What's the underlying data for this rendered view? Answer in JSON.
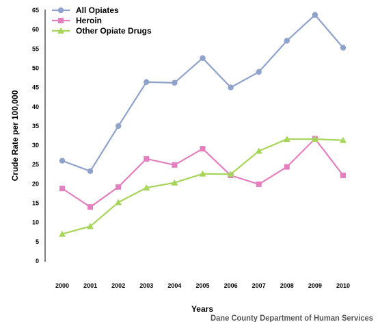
{
  "chart_data": {
    "type": "line",
    "title": "",
    "xlabel": "Years",
    "ylabel": "Crude Rate per 100,000",
    "x": [
      "2000",
      "2001",
      "2002",
      "2003",
      "2004",
      "2005",
      "2006",
      "2007",
      "2008",
      "2009",
      "2010"
    ],
    "ylim": [
      0,
      65
    ],
    "yticks": [
      "0",
      "5",
      "10",
      "15",
      "20",
      "25",
      "30",
      "35",
      "40",
      "45",
      "50",
      "55",
      "60",
      "65"
    ],
    "grid": false,
    "legend_position": "top-left",
    "series": [
      {
        "name": "All Opiates",
        "color": "#8ea2cc",
        "marker": "circle",
        "values": [
          26.0,
          23.3,
          35.0,
          46.4,
          46.2,
          52.6,
          45.0,
          49.0,
          57.1,
          63.8,
          55.3
        ]
      },
      {
        "name": "Heroin",
        "color": "#e37fbe",
        "marker": "square",
        "values": [
          18.8,
          14.0,
          19.2,
          26.5,
          24.9,
          29.1,
          22.2,
          19.9,
          24.4,
          31.7,
          22.2
        ]
      },
      {
        "name": "Other Opiate Drugs",
        "color": "#a6d55a",
        "marker": "triangle",
        "values": [
          7.0,
          9.0,
          15.2,
          19.0,
          20.3,
          22.6,
          22.5,
          28.5,
          31.6,
          31.6,
          31.3
        ]
      }
    ],
    "source": "Dane County Department of Human Services"
  }
}
